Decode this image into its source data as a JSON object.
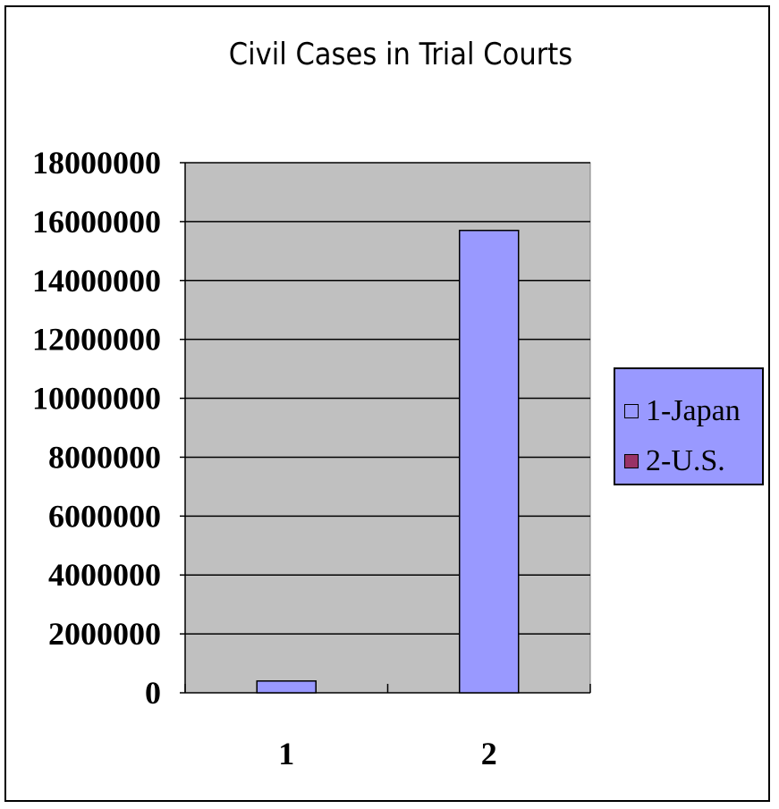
{
  "chart_data": {
    "type": "bar",
    "title": "Civil Cases in Trial Courts",
    "categories": [
      "1",
      "2"
    ],
    "series": [
      {
        "name": "1-Japan",
        "color": "#9999ff",
        "values": [
          400000,
          15700000
        ]
      },
      {
        "name": "2-U.S.",
        "color": "#993366",
        "values": [
          0,
          0
        ]
      }
    ],
    "ylim": [
      0,
      18000000
    ],
    "yticks": [
      0,
      2000000,
      4000000,
      6000000,
      8000000,
      10000000,
      12000000,
      14000000,
      16000000,
      18000000
    ],
    "xlabel": "",
    "ylabel": "",
    "grid": true,
    "legend_position": "right",
    "plot_background": "#c0c0c0"
  }
}
